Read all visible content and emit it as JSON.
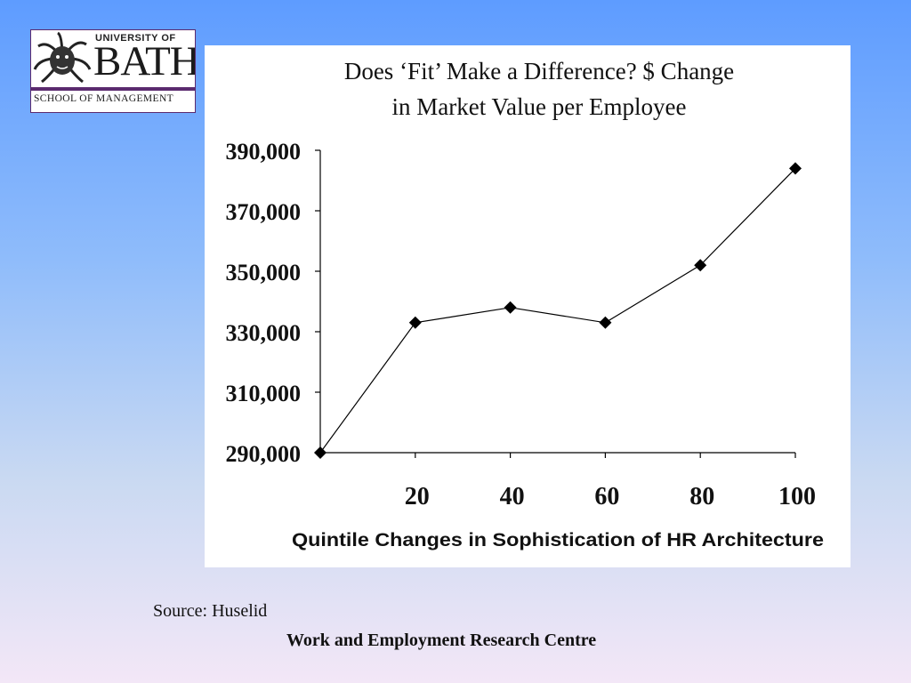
{
  "logo": {
    "university": "UNIVERSITY OF",
    "name": "BATH",
    "school": "SCHOOL OF MANAGEMENT",
    "accent_color": "#5b2a6e"
  },
  "chart_data": {
    "type": "line",
    "title": "Does ‘Fit’ Make a Difference?  $ Change in Market Value per Employee",
    "title_lines": [
      "Does ‘Fit’ Make a Difference?  $ Change",
      "in Market Value per Employee"
    ],
    "xlabel": "Quintile Changes in Sophistication of HR Architecture",
    "ylabel": "",
    "x": [
      0,
      20,
      40,
      60,
      80,
      100
    ],
    "x_tick_labels": [
      "20",
      "40",
      "60",
      "80",
      "100"
    ],
    "x_ticks": [
      20,
      40,
      60,
      80,
      100
    ],
    "xlim": [
      0,
      100
    ],
    "y": [
      290000,
      333000,
      338000,
      333000,
      352000,
      384000
    ],
    "y_tick_labels": [
      "390,000",
      "370,000",
      "350,000",
      "330,000",
      "310,000",
      "290,000"
    ],
    "y_ticks": [
      390000,
      370000,
      350000,
      330000,
      310000,
      290000
    ],
    "ylim": [
      290000,
      390000
    ],
    "marker": "diamond",
    "grid": false,
    "legend": "none",
    "line_color": "#000000"
  },
  "source_text": "Source: Huselid",
  "footer_text": "Work and Employment Research Centre"
}
